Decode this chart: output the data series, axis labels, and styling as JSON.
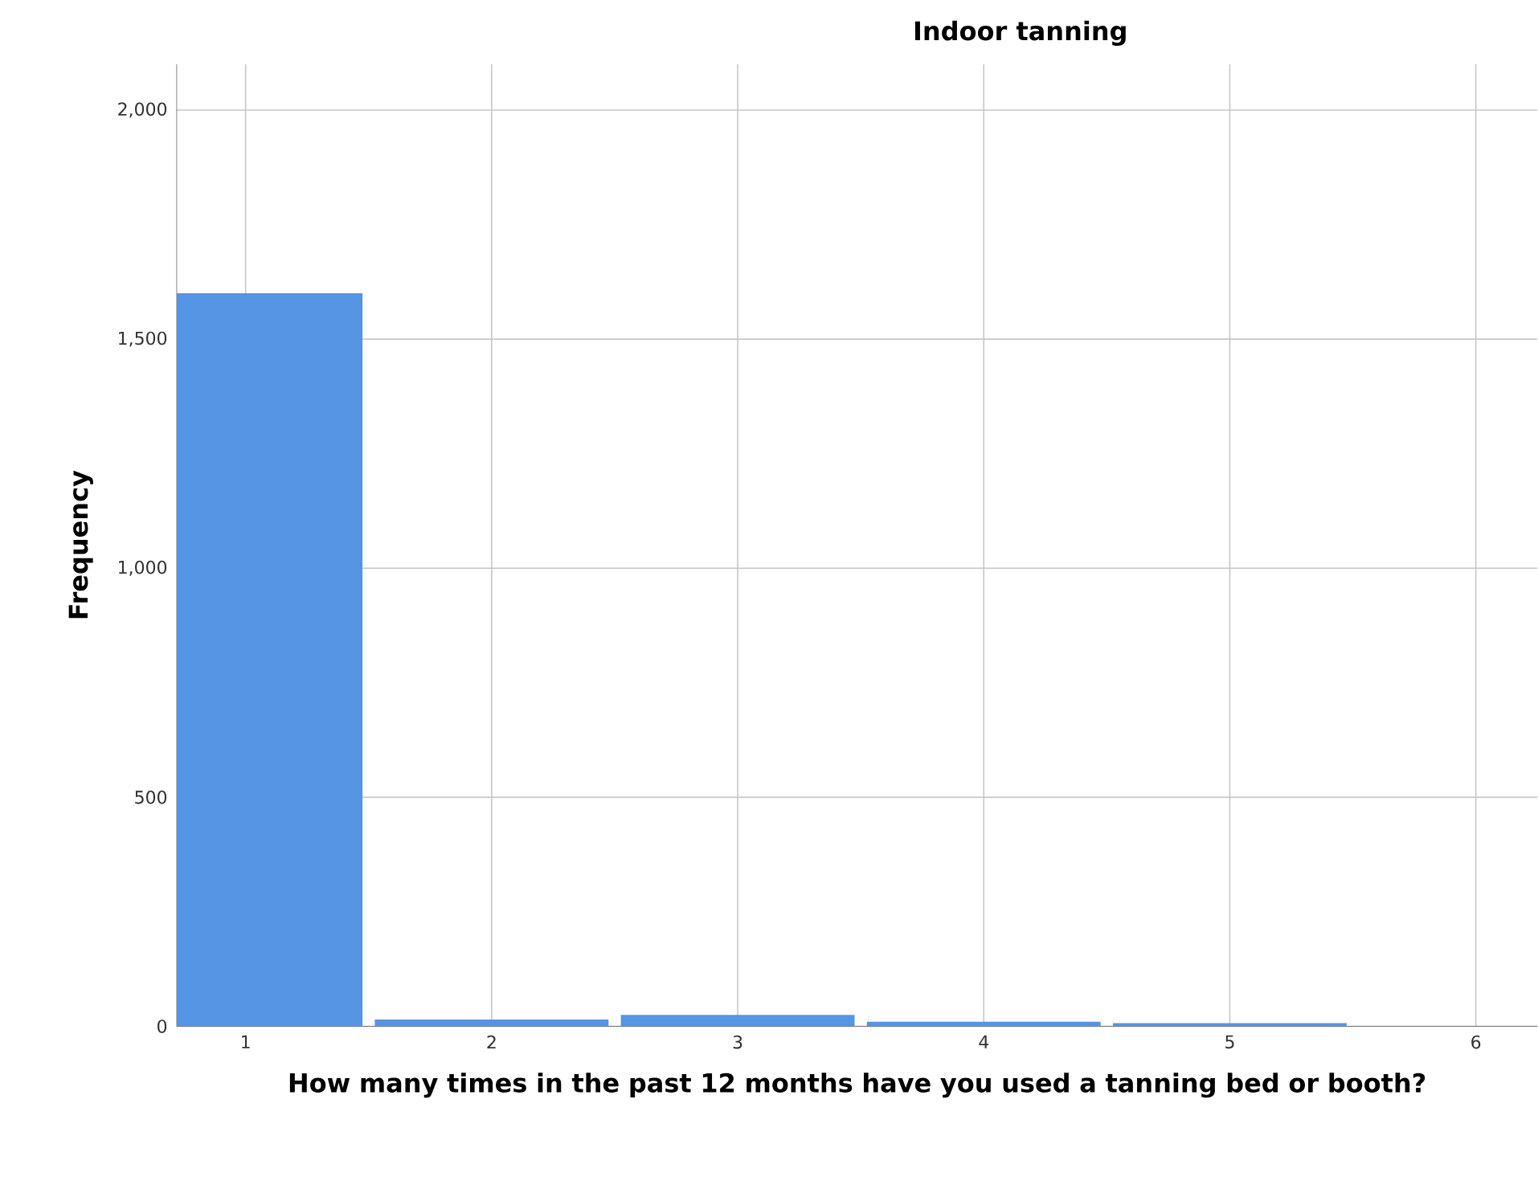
{
  "chart_data": {
    "type": "bar",
    "title": "Indoor tanning",
    "xlabel": "How many times in the past 12 months have you used a tanning bed or booth?",
    "ylabel": "Frequency",
    "categories": [
      "1",
      "2",
      "3",
      "4",
      "5",
      "6"
    ],
    "values": [
      1600,
      15,
      25,
      10,
      7,
      0
    ],
    "color": "#5694e4",
    "ylim": [
      0,
      2100
    ],
    "yticks": [
      0,
      500,
      {
        "value": 1000,
        "label": "1,000"
      },
      {
        "value": 1500,
        "label": "1,500"
      },
      {
        "value": 2000,
        "label": "2,000"
      }
    ],
    "grid": true
  }
}
